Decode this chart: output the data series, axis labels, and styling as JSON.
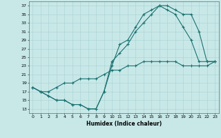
{
  "title": "",
  "xlabel": "Humidex (Indice chaleur)",
  "bg_color": "#c8e8e8",
  "line_color": "#1a7070",
  "xlim": [
    -0.5,
    23.5
  ],
  "ylim": [
    12,
    38
  ],
  "xticks": [
    0,
    1,
    2,
    3,
    4,
    5,
    6,
    7,
    8,
    9,
    10,
    11,
    12,
    13,
    14,
    15,
    16,
    17,
    18,
    19,
    20,
    21,
    22,
    23
  ],
  "yticks": [
    13,
    15,
    17,
    19,
    21,
    23,
    25,
    27,
    29,
    31,
    33,
    35,
    37
  ],
  "line1_x": [
    0,
    1,
    2,
    3,
    4,
    5,
    6,
    7,
    8,
    9,
    10,
    11,
    12,
    13,
    14,
    15,
    16,
    17,
    18,
    19,
    20,
    21,
    22,
    23
  ],
  "line1_y": [
    18,
    17,
    16,
    15,
    15,
    14,
    14,
    13,
    13,
    17,
    23,
    28,
    29,
    32,
    35,
    36,
    37,
    36,
    35,
    32,
    29,
    24,
    24,
    24
  ],
  "line2_x": [
    0,
    1,
    2,
    3,
    4,
    5,
    6,
    7,
    8,
    9,
    10,
    11,
    12,
    13,
    14,
    15,
    16,
    17,
    18,
    19,
    20,
    21,
    22,
    23
  ],
  "line2_y": [
    18,
    17,
    16,
    15,
    15,
    14,
    14,
    13,
    13,
    17,
    24,
    26,
    28,
    31,
    33,
    35,
    37,
    37,
    36,
    35,
    35,
    31,
    24,
    24
  ],
  "line3_x": [
    0,
    1,
    2,
    3,
    4,
    5,
    6,
    7,
    8,
    9,
    10,
    11,
    12,
    13,
    14,
    15,
    16,
    17,
    18,
    19,
    20,
    21,
    22,
    23
  ],
  "line3_y": [
    18,
    17,
    17,
    18,
    19,
    19,
    20,
    20,
    20,
    21,
    22,
    22,
    23,
    23,
    24,
    24,
    24,
    24,
    24,
    23,
    23,
    23,
    23,
    24
  ]
}
